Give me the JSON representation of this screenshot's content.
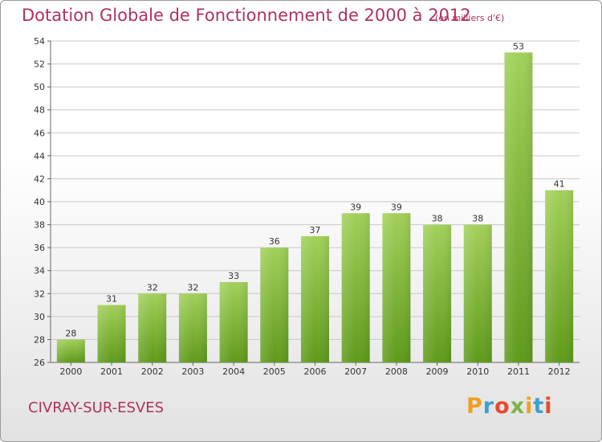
{
  "header": {
    "title": "Dotation Globale de Fonctionnement de 2000 à 2012",
    "subtitle": "(en milliers d'€)"
  },
  "footer": {
    "place": "CIVRAY-SUR-ESVES",
    "logo": [
      "P",
      "r",
      "o",
      "x",
      "i",
      "t",
      "i"
    ],
    "logo_colors": [
      "#f0a020",
      "#3a9fd6",
      "#e84a2a",
      "#7ab648",
      "#f0a020",
      "#3a9fd6",
      "#e84a2a"
    ]
  },
  "colors": {
    "accent": "#b0325a",
    "bar_light": "#a2d05a",
    "bar_dark": "#5e9a1a",
    "grid": "#c8c8c8",
    "axis_text": "#333333"
  },
  "chart_data": {
    "type": "bar",
    "title": "Dotation Globale de Fonctionnement de 2000 à 2012",
    "subtitle": "(en milliers d'€)",
    "categories": [
      "2000",
      "2001",
      "2002",
      "2003",
      "2004",
      "2005",
      "2006",
      "2007",
      "2008",
      "2009",
      "2010",
      "2011",
      "2012"
    ],
    "values": [
      28,
      31,
      32,
      32,
      33,
      36,
      37,
      39,
      39,
      38,
      38,
      53,
      41
    ],
    "ylim": [
      26,
      54
    ],
    "yticks": [
      26,
      28,
      30,
      32,
      34,
      36,
      38,
      40,
      42,
      44,
      46,
      48,
      50,
      52,
      54
    ],
    "grid": true,
    "legend": "none"
  }
}
